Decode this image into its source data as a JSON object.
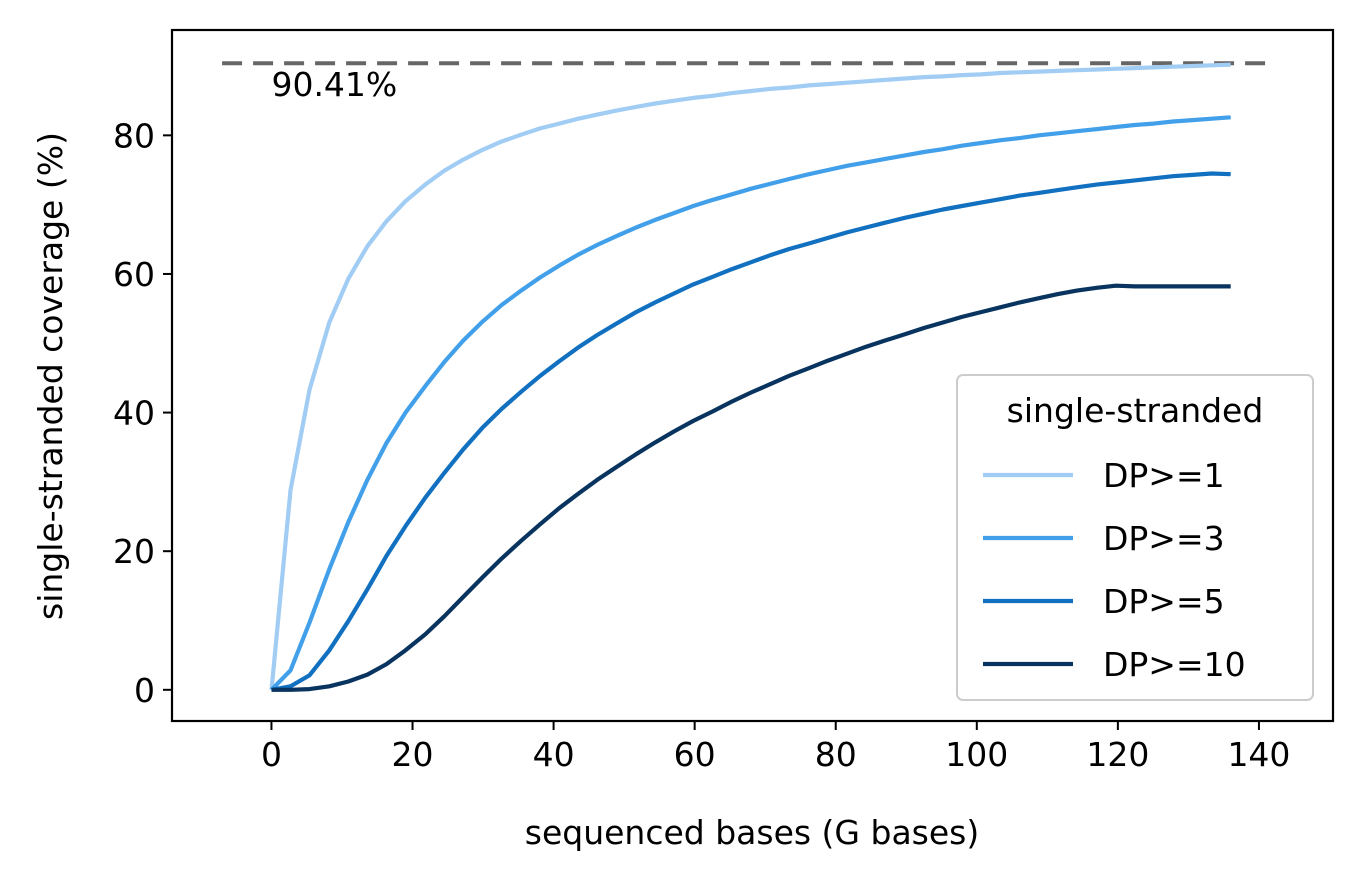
{
  "chart_data": {
    "type": "line",
    "xlabel": "sequenced bases (G bases)",
    "ylabel": "single-stranded coverage (%)",
    "xlim": [
      -14.1,
      150.5
    ],
    "ylim": [
      -4.5,
      95.2
    ],
    "xticks": [
      0,
      20,
      40,
      60,
      80,
      100,
      120,
      140
    ],
    "yticks": [
      0,
      20,
      40,
      60,
      80
    ],
    "grid": false,
    "reference_line": {
      "y": 90.41,
      "x_range": [
        -7,
        142
      ],
      "label": "90.41%",
      "style": "dashed",
      "color": "#666666"
    },
    "legend": {
      "title": "single-stranded",
      "position": "lower right"
    },
    "x": [
      0,
      2.7,
      5.4,
      8.2,
      10.9,
      13.6,
      16.3,
      19.0,
      21.8,
      24.5,
      27.2,
      29.9,
      32.6,
      35.4,
      38.1,
      40.8,
      43.5,
      46.2,
      49.0,
      51.7,
      54.4,
      57.1,
      59.8,
      62.6,
      65.3,
      68.0,
      70.7,
      73.4,
      76.2,
      78.9,
      81.6,
      84.3,
      87.0,
      89.8,
      92.5,
      95.2,
      97.9,
      100.6,
      103.4,
      106.1,
      108.8,
      111.5,
      114.2,
      117.0,
      119.7,
      122.4,
      125.1,
      127.8,
      130.6,
      133.3,
      136.0
    ],
    "series": [
      {
        "name": "DP>=1",
        "color": "#a1cdf4",
        "values": [
          0,
          28.8,
          43.3,
          53.0,
          59.3,
          64.0,
          67.6,
          70.5,
          72.9,
          74.9,
          76.5,
          77.9,
          79.1,
          80.1,
          81.0,
          81.7,
          82.4,
          83.0,
          83.6,
          84.1,
          84.6,
          85.0,
          85.4,
          85.7,
          86.1,
          86.4,
          86.7,
          86.9,
          87.2,
          87.4,
          87.6,
          87.8,
          88.0,
          88.2,
          88.4,
          88.5,
          88.7,
          88.8,
          89.0,
          89.1,
          89.2,
          89.3,
          89.4,
          89.5,
          89.6,
          89.7,
          89.8,
          89.9,
          90.0,
          90.1,
          90.2
        ]
      },
      {
        "name": "DP>=3",
        "color": "#42a0ea",
        "values": [
          0,
          2.8,
          9.7,
          17.4,
          24.2,
          30.3,
          35.6,
          40.0,
          43.8,
          47.3,
          50.4,
          53.1,
          55.5,
          57.6,
          59.5,
          61.2,
          62.8,
          64.2,
          65.5,
          66.7,
          67.8,
          68.8,
          69.8,
          70.7,
          71.5,
          72.3,
          73.0,
          73.7,
          74.4,
          75.0,
          75.6,
          76.1,
          76.6,
          77.1,
          77.6,
          78.0,
          78.5,
          78.9,
          79.3,
          79.6,
          80.0,
          80.3,
          80.6,
          80.9,
          81.2,
          81.5,
          81.7,
          82.0,
          82.2,
          82.4,
          82.6
        ]
      },
      {
        "name": "DP>=5",
        "color": "#1170c0",
        "values": [
          0,
          0.5,
          2.1,
          5.7,
          9.9,
          14.5,
          19.3,
          23.6,
          27.7,
          31.3,
          34.7,
          37.8,
          40.5,
          43.0,
          45.3,
          47.4,
          49.4,
          51.2,
          52.9,
          54.5,
          55.9,
          57.2,
          58.5,
          59.6,
          60.7,
          61.7,
          62.7,
          63.6,
          64.4,
          65.2,
          66.0,
          66.7,
          67.4,
          68.1,
          68.7,
          69.3,
          69.8,
          70.3,
          70.8,
          71.3,
          71.7,
          72.1,
          72.5,
          72.9,
          73.2,
          73.5,
          73.8,
          74.1,
          74.3,
          74.5,
          74.4
        ]
      },
      {
        "name": "DP>=10",
        "color": "#08345f",
        "values": [
          0,
          0,
          0.1,
          0.5,
          1.2,
          2.2,
          3.7,
          5.7,
          8.0,
          10.6,
          13.4,
          16.2,
          18.9,
          21.5,
          23.9,
          26.2,
          28.3,
          30.3,
          32.2,
          34.0,
          35.7,
          37.3,
          38.8,
          40.2,
          41.6,
          42.9,
          44.1,
          45.3,
          46.4,
          47.5,
          48.5,
          49.5,
          50.4,
          51.3,
          52.2,
          53.0,
          53.8,
          54.5,
          55.2,
          55.9,
          56.5,
          57.1,
          57.6,
          58.0,
          58.3,
          58.2,
          58.2,
          58.2,
          58.2,
          58.2,
          58.2
        ]
      }
    ]
  }
}
